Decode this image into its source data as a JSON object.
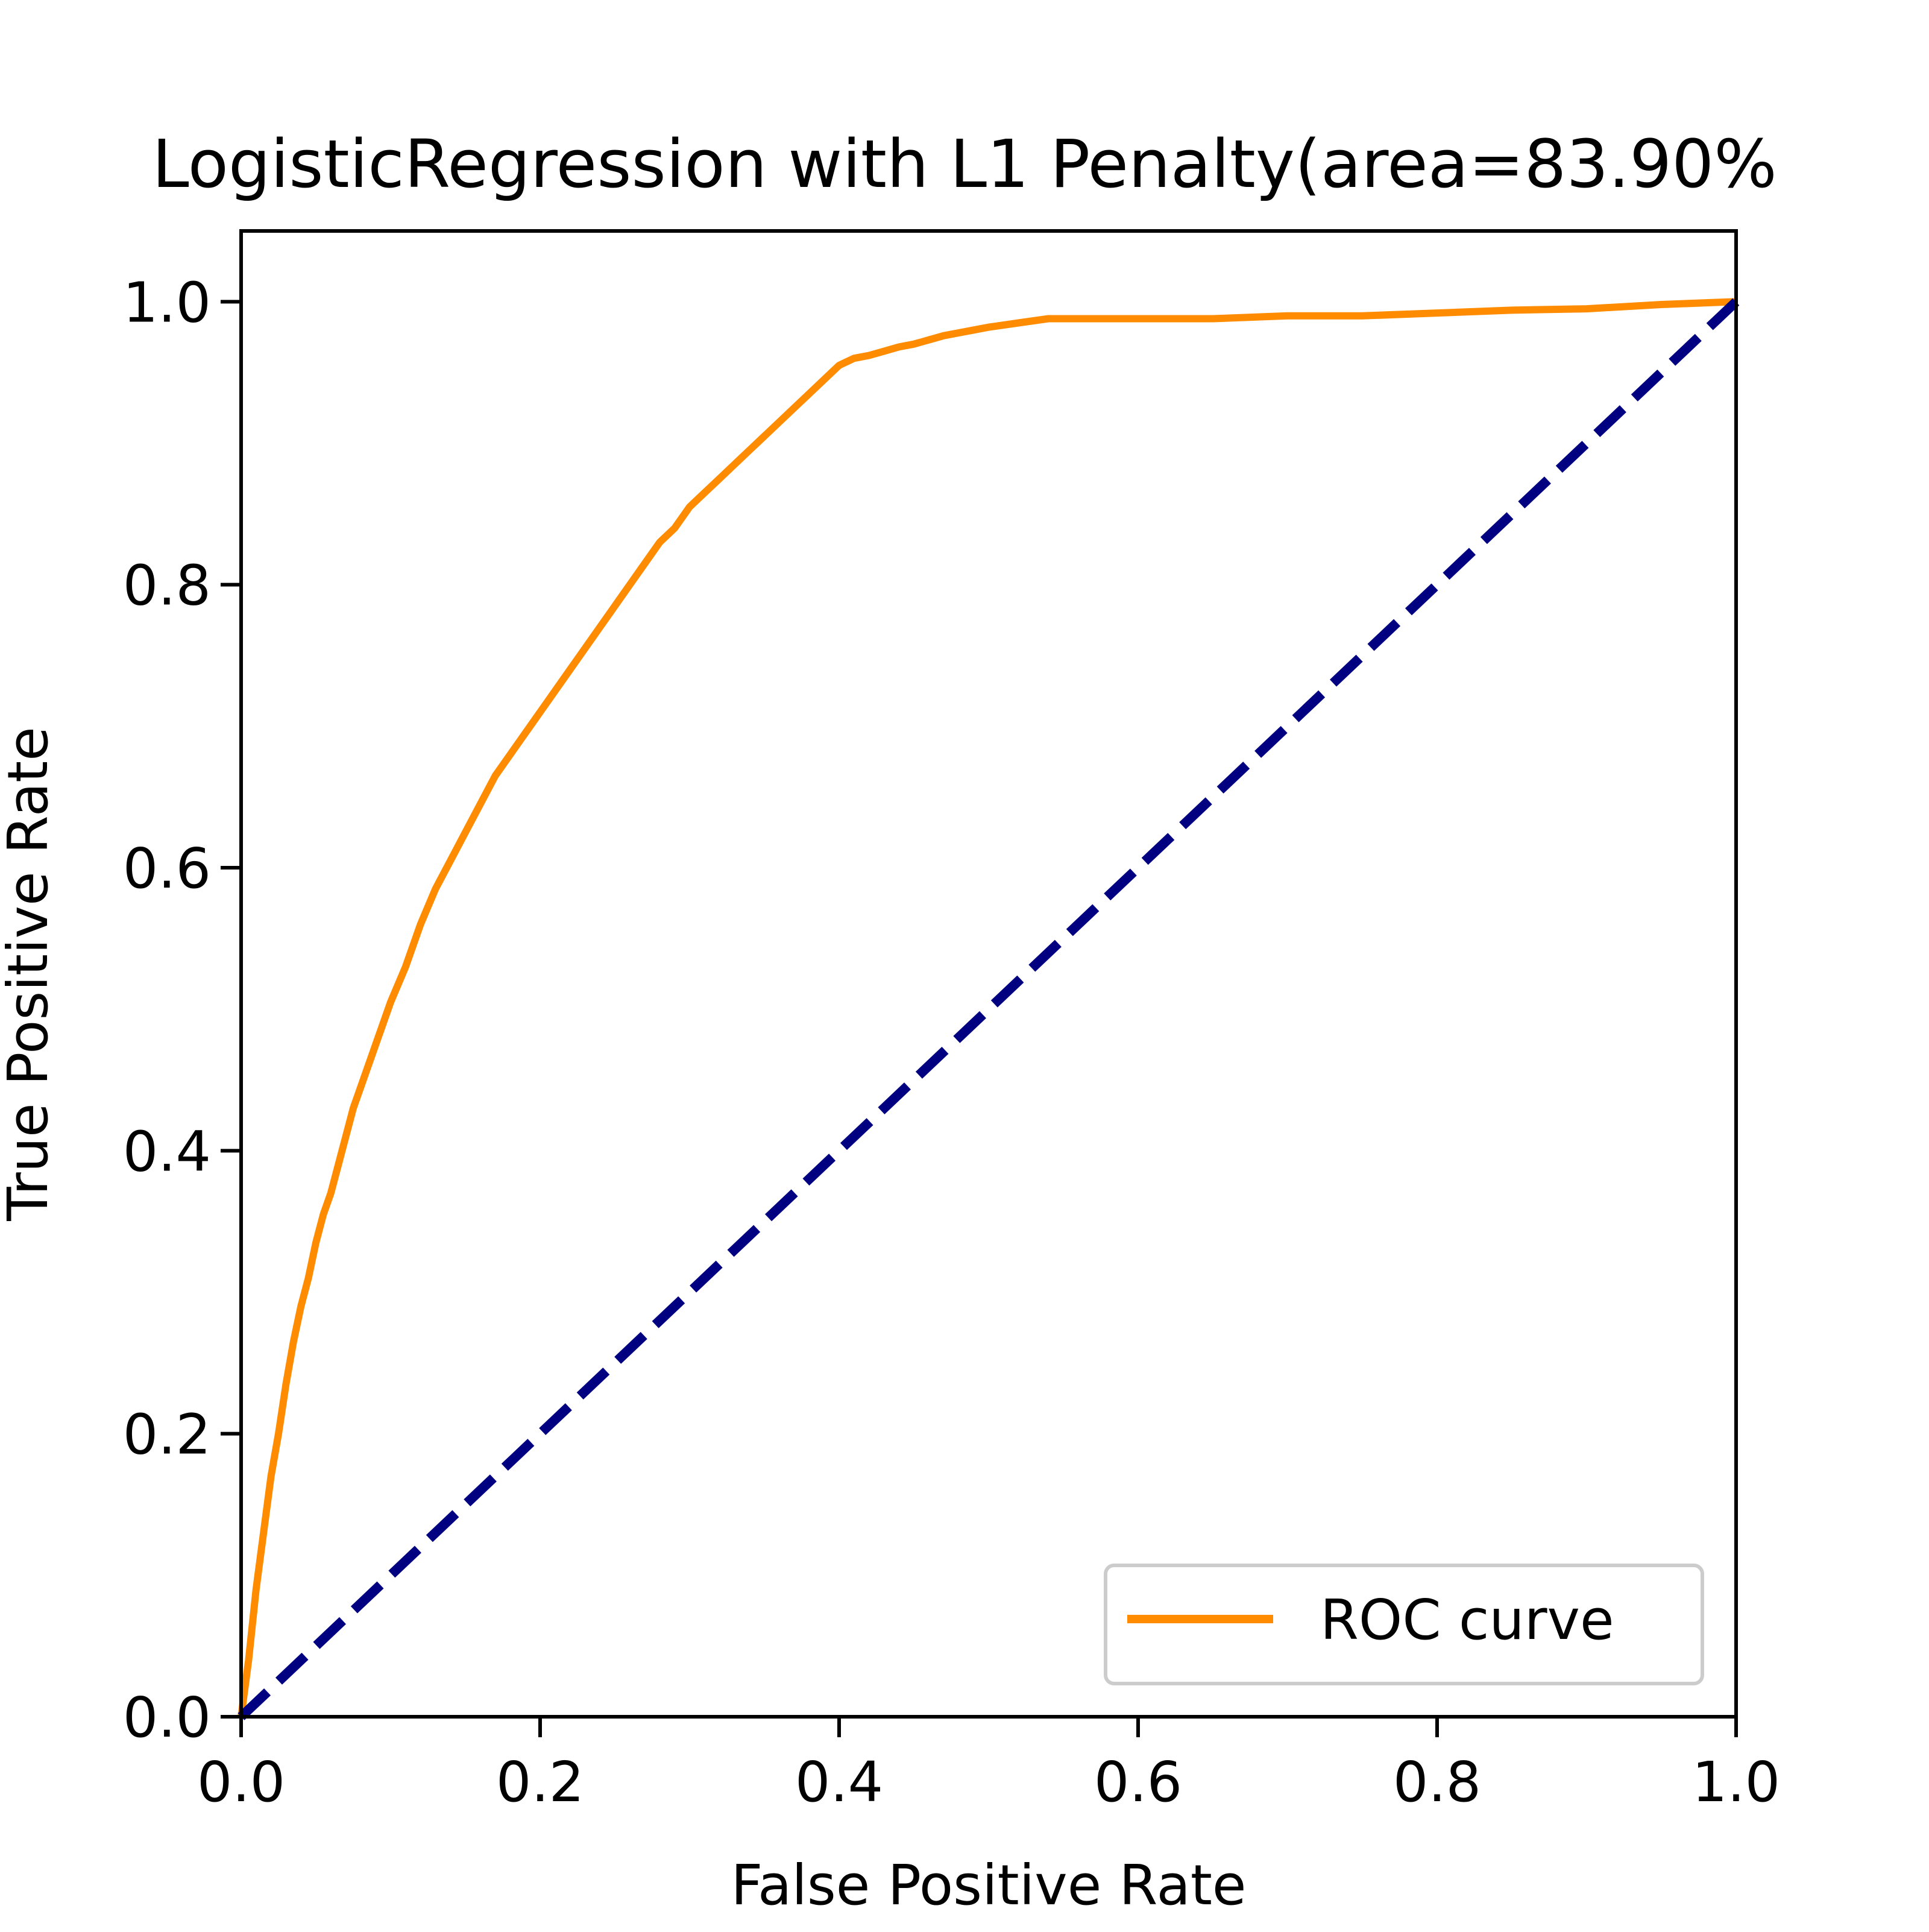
{
  "chart_data": {
    "type": "line",
    "title": "LogisticRegression with L1 Penalty(area=83.90%",
    "xlabel": "False Positive Rate",
    "ylabel": "True Positive Rate",
    "xlim": [
      0.0,
      1.0
    ],
    "ylim": [
      0.0,
      1.05
    ],
    "xticks": [
      "0.0",
      "0.2",
      "0.4",
      "0.6",
      "0.8",
      "1.0"
    ],
    "yticks": [
      "0.0",
      "0.2",
      "0.4",
      "0.6",
      "0.8",
      "1.0"
    ],
    "grid": false,
    "legend": {
      "position": "lower-right",
      "entries": [
        "ROC curve"
      ]
    },
    "colors": {
      "roc": "#ff8c00",
      "diagonal": "#000080",
      "axes": "#000000"
    },
    "series": [
      {
        "name": "ROC curve",
        "style": "solid",
        "x": [
          0.0,
          0.005,
          0.01,
          0.015,
          0.02,
          0.025,
          0.03,
          0.035,
          0.04,
          0.045,
          0.05,
          0.055,
          0.06,
          0.065,
          0.07,
          0.075,
          0.08,
          0.085,
          0.09,
          0.095,
          0.1,
          0.11,
          0.12,
          0.13,
          0.14,
          0.15,
          0.16,
          0.17,
          0.18,
          0.19,
          0.2,
          0.21,
          0.22,
          0.23,
          0.24,
          0.25,
          0.26,
          0.27,
          0.28,
          0.29,
          0.3,
          0.31,
          0.32,
          0.33,
          0.34,
          0.35,
          0.36,
          0.37,
          0.38,
          0.39,
          0.4,
          0.41,
          0.42,
          0.43,
          0.44,
          0.45,
          0.46,
          0.47,
          0.48,
          0.49,
          0.5,
          0.52,
          0.54,
          0.56,
          0.6,
          0.65,
          0.7,
          0.75,
          0.8,
          0.85,
          0.9,
          0.95,
          1.0
        ],
        "y": [
          0.0,
          0.04,
          0.09,
          0.13,
          0.17,
          0.2,
          0.235,
          0.265,
          0.29,
          0.31,
          0.335,
          0.355,
          0.37,
          0.39,
          0.41,
          0.43,
          0.445,
          0.46,
          0.475,
          0.49,
          0.505,
          0.53,
          0.56,
          0.585,
          0.605,
          0.625,
          0.645,
          0.665,
          0.68,
          0.695,
          0.71,
          0.725,
          0.74,
          0.755,
          0.77,
          0.785,
          0.8,
          0.815,
          0.83,
          0.84,
          0.855,
          0.865,
          0.875,
          0.885,
          0.895,
          0.905,
          0.915,
          0.925,
          0.935,
          0.945,
          0.955,
          0.96,
          0.962,
          0.965,
          0.968,
          0.97,
          0.973,
          0.976,
          0.978,
          0.98,
          0.982,
          0.985,
          0.988,
          0.988,
          0.988,
          0.988,
          0.99,
          0.99,
          0.992,
          0.994,
          0.995,
          0.998,
          1.0
        ]
      },
      {
        "name": "",
        "style": "dashed",
        "x": [
          0.0,
          1.0
        ],
        "y": [
          0.0,
          1.0
        ]
      }
    ]
  }
}
